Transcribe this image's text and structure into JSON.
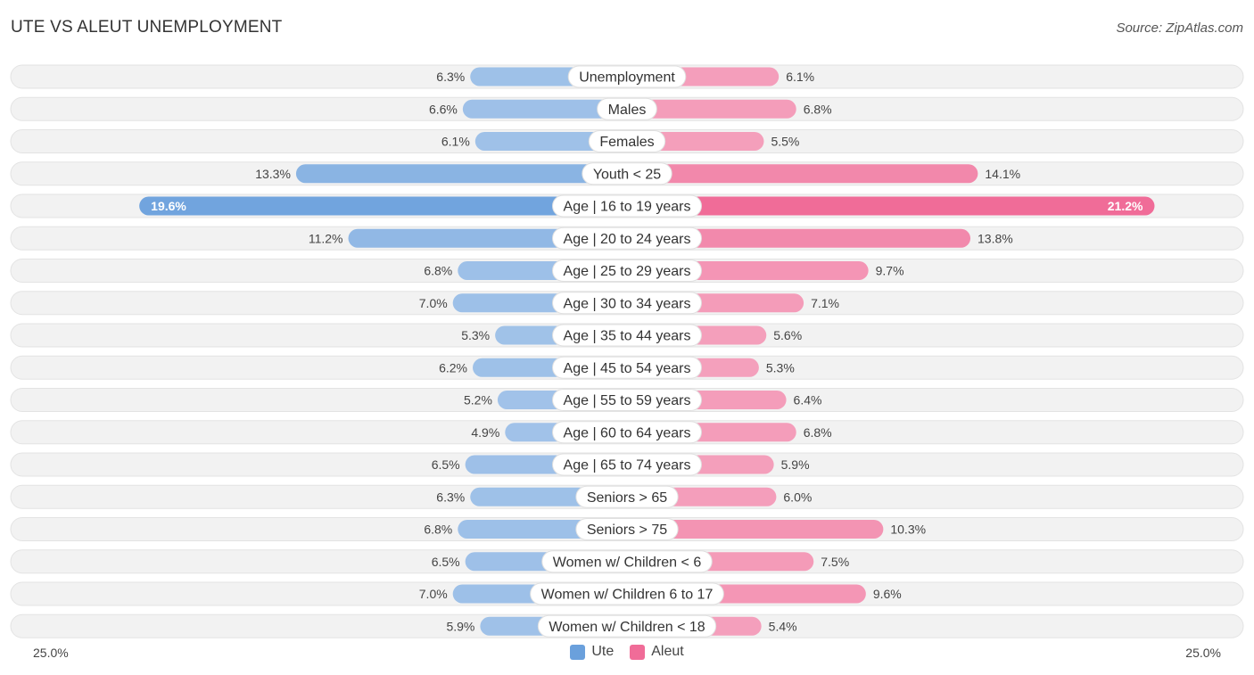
{
  "header": {
    "title": "UTE VS ALEUT UNEMPLOYMENT",
    "source": "Source: ZipAtlas.com"
  },
  "colors": {
    "ute": "#6aa0dc",
    "ute_light": "#a7c6ea",
    "aleut": "#f06c98",
    "aleut_light": "#f5a6c0",
    "row_bg": "#f2f2f2"
  },
  "chart_data": {
    "type": "bar",
    "orientation": "horizontal-diverging",
    "title": "UTE VS ALEUT UNEMPLOYMENT",
    "categories": [
      "Unemployment",
      "Males",
      "Females",
      "Youth < 25",
      "Age | 16 to 19 years",
      "Age | 20 to 24 years",
      "Age | 25 to 29 years",
      "Age | 30 to 34 years",
      "Age | 35 to 44 years",
      "Age | 45 to 54 years",
      "Age | 55 to 59 years",
      "Age | 60 to 64 years",
      "Age | 65 to 74 years",
      "Seniors > 65",
      "Seniors > 75",
      "Women w/ Children < 6",
      "Women w/ Children 6 to 17",
      "Women w/ Children < 18"
    ],
    "series": [
      {
        "name": "Ute",
        "values": [
          6.3,
          6.6,
          6.1,
          13.3,
          19.6,
          11.2,
          6.8,
          7.0,
          5.3,
          6.2,
          5.2,
          4.9,
          6.5,
          6.3,
          6.8,
          6.5,
          7.0,
          5.9
        ],
        "labels": [
          "6.3%",
          "6.6%",
          "6.1%",
          "13.3%",
          "19.6%",
          "11.2%",
          "6.8%",
          "7.0%",
          "5.3%",
          "6.2%",
          "5.2%",
          "4.9%",
          "6.5%",
          "6.3%",
          "6.8%",
          "6.5%",
          "7.0%",
          "5.9%"
        ]
      },
      {
        "name": "Aleut",
        "values": [
          6.1,
          6.8,
          5.5,
          14.1,
          21.2,
          13.8,
          9.7,
          7.1,
          5.6,
          5.3,
          6.4,
          6.8,
          5.9,
          6.0,
          10.3,
          7.5,
          9.6,
          5.4
        ],
        "labels": [
          "6.1%",
          "6.8%",
          "5.5%",
          "14.1%",
          "21.2%",
          "13.8%",
          "9.7%",
          "7.1%",
          "5.6%",
          "5.3%",
          "6.4%",
          "6.8%",
          "5.9%",
          "6.0%",
          "10.3%",
          "7.5%",
          "9.6%",
          "5.4%"
        ]
      }
    ],
    "xlim": [
      0,
      25
    ],
    "axis_left_label": "25.0%",
    "axis_right_label": "25.0%",
    "legend": [
      "Ute",
      "Aleut"
    ],
    "legend_position": "bottom-center"
  }
}
